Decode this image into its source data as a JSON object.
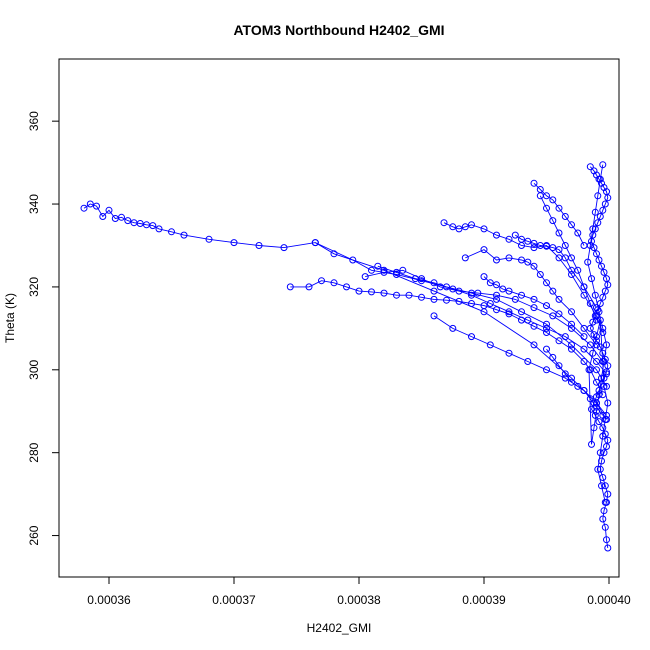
{
  "chart_data": {
    "type": "scatter",
    "title": "ATOM3 Northbound H2402_GMI",
    "xlabel": "H2402_GMI",
    "ylabel": "Theta (K)",
    "xlim": [
      0.000356,
      0.0004008
    ],
    "ylim": [
      250,
      375
    ],
    "x_ticks": [
      "0.00036",
      "0.00037",
      "0.00038",
      "0.00039",
      "0.00040"
    ],
    "x_tick_values": [
      0.00036,
      0.00037,
      0.00038,
      0.00039,
      0.0004
    ],
    "y_ticks": [
      "260",
      "280",
      "300",
      "320",
      "340",
      "360"
    ],
    "y_tick_values": [
      260,
      280,
      300,
      320,
      340,
      360
    ],
    "grid": false,
    "legend": "none",
    "marker": "open-circle",
    "color": "#0000ff",
    "series": [
      {
        "x": [
          0.000358,
          0.0003585,
          0.000359,
          0.0003595,
          0.00036,
          0.0003605,
          0.000361,
          0.0003615,
          0.000362,
          0.0003625,
          0.000363,
          0.0003635,
          0.000364,
          0.000365,
          0.000366,
          0.000368,
          0.00037,
          0.000372,
          0.000374,
          0.0003765,
          0.000378,
          0.000382,
          0.000386,
          0.00039,
          0.000394,
          0.000397,
          0.000399,
          0.0003998
        ],
        "y": [
          339.0,
          340.0,
          339.5,
          337.0,
          338.5,
          336.5,
          336.8,
          336.0,
          335.5,
          335.3,
          335.0,
          334.8,
          334.0,
          333.3,
          332.5,
          331.5,
          330.7,
          330.0,
          329.5,
          330.7,
          328.0,
          324.0,
          319.0,
          314.0,
          306.0,
          298.0,
          292.0,
          288.0
        ]
      },
      {
        "x": [
          0.0003745,
          0.000376,
          0.000377,
          0.000378,
          0.000379,
          0.00038,
          0.000381,
          0.000382,
          0.000383,
          0.000384,
          0.000385,
          0.000386,
          0.000387,
          0.000388,
          0.000389,
          0.00039,
          0.000391,
          0.000392,
          0.000393,
          0.000394,
          0.000395,
          0.000396,
          0.000397,
          0.000398,
          0.0003985,
          0.000399,
          0.0003995
        ],
        "y": [
          320.0,
          320.0,
          321.5,
          321.0,
          320.0,
          319.0,
          318.8,
          318.5,
          318.0,
          318.0,
          317.5,
          317.0,
          316.8,
          316.5,
          316.0,
          315.5,
          314.5,
          313.5,
          312.0,
          310.5,
          309.0,
          307.0,
          305.0,
          302.0,
          300.0,
          297.0,
          294.0
        ]
      },
      {
        "x": [
          0.0003765,
          0.0003795,
          0.000381,
          0.000383,
          0.000385,
          0.000387,
          0.000389,
          0.000391,
          0.000393,
          0.000395,
          0.000397,
          0.000399,
          0.0003998
        ],
        "y": [
          330.7,
          326.5,
          324.0,
          323.0,
          321.5,
          320.0,
          318.5,
          317.0,
          314.0,
          311.0,
          306.0,
          300.0,
          296.0
        ]
      },
      {
        "x": [
          0.0003805,
          0.000382,
          0.0003835,
          0.000385,
          0.0003865,
          0.000388,
          0.0003895,
          0.000391,
          0.0003925,
          0.000394,
          0.0003955,
          0.000397,
          0.0003985,
          0.0003995
        ],
        "y": [
          322.5,
          323.5,
          324.0,
          322.0,
          320.0,
          319.0,
          318.5,
          318.0,
          317.0,
          315.0,
          313.0,
          310.0,
          306.0,
          302.0
        ]
      },
      {
        "x": [
          0.0003815,
          0.000383,
          0.0003845,
          0.000386,
          0.0003875,
          0.000389,
          0.0003905,
          0.000392,
          0.0003935,
          0.000395,
          0.0003965,
          0.000398,
          0.000399,
          0.0003998
        ],
        "y": [
          325.0,
          323.5,
          322.0,
          321.0,
          319.5,
          318.0,
          316.0,
          314.0,
          312.0,
          310.0,
          308.0,
          305.0,
          302.0,
          299.0
        ]
      },
      {
        "x": [
          0.000386,
          0.0003875,
          0.000389,
          0.0003905,
          0.000392,
          0.0003935,
          0.000395,
          0.0003965,
          0.000398,
          0.000399,
          0.0003998
        ],
        "y": [
          313.0,
          310.0,
          308.0,
          306.0,
          304.0,
          302.0,
          300.0,
          298.0,
          295.0,
          292.0,
          289.0
        ]
      },
      {
        "x": [
          0.0003868,
          0.0003875,
          0.000388,
          0.0003885,
          0.000389,
          0.00039,
          0.000391,
          0.000392,
          0.000393,
          0.000394,
          0.000395,
          0.000396,
          0.000397,
          0.000398,
          0.000399,
          0.0003995
        ],
        "y": [
          335.5,
          334.5,
          334.0,
          334.5,
          335.0,
          334.0,
          332.5,
          331.5,
          330.0,
          329.5,
          330.0,
          327.0,
          323.0,
          318.0,
          313.0,
          309.0
        ]
      },
      {
        "x": [
          0.0003885,
          0.00039,
          0.000391,
          0.000392,
          0.000393,
          0.0003935,
          0.000394,
          0.0003945,
          0.000395,
          0.0003955,
          0.000396,
          0.000397,
          0.000398,
          0.000399
        ],
        "y": [
          327.0,
          329.0,
          326.5,
          327.0,
          326.5,
          326.0,
          325.0,
          323.0,
          321.0,
          319.0,
          317.0,
          314.0,
          310.0,
          306.0
        ]
      },
      {
        "x": [
          0.0003925,
          0.000393,
          0.0003935,
          0.000394,
          0.0003945,
          0.000395,
          0.0003955,
          0.000396,
          0.0003965,
          0.000397,
          0.000398,
          0.000399
        ],
        "y": [
          332.5,
          331.5,
          331.0,
          330.5,
          330.0,
          329.8,
          329.5,
          329.0,
          327.0,
          324.0,
          320.0,
          315.0
        ]
      },
      {
        "x": [
          0.000394,
          0.0003945,
          0.000395,
          0.0003955,
          0.000396,
          0.0003965,
          0.000397,
          0.0003975,
          0.000398
        ],
        "y": [
          345.0,
          343.5,
          342.0,
          341.0,
          339.0,
          337.0,
          335.0,
          333.0,
          330.0
        ]
      },
      {
        "x": [
          0.0003945,
          0.000395,
          0.0003955,
          0.000396,
          0.0003965,
          0.000397,
          0.0003975,
          0.000398,
          0.0003985,
          0.000399
        ],
        "y": [
          342.0,
          339.0,
          336.0,
          333.0,
          330.0,
          327.0,
          324.0,
          320.0,
          316.0,
          312.0
        ]
      },
      {
        "x": [
          0.00039,
          0.0003905,
          0.000391,
          0.0003915,
          0.000392,
          0.000393,
          0.000394,
          0.000395,
          0.000396,
          0.000397,
          0.000398
        ],
        "y": [
          322.5,
          321.0,
          320.5,
          319.5,
          319.0,
          318.0,
          317.0,
          315.5,
          313.5,
          311.0,
          308.0
        ]
      },
      {
        "x": [
          0.000395,
          0.0003955,
          0.000396,
          0.0003965,
          0.000397,
          0.0003975,
          0.000398,
          0.0003985,
          0.000399,
          0.0003995
        ],
        "y": [
          305.0,
          303.0,
          301.0,
          299.0,
          297.0,
          296.0,
          295.0,
          293.0,
          291.0,
          289.0
        ]
      },
      {
        "x": [
          0.0003985,
          0.0003988,
          0.000399,
          0.0003992,
          0.0003994,
          0.0003996,
          0.0003998,
          0.0003999,
          0.0003997,
          0.0003995,
          0.0003993,
          0.0003991,
          0.0003989,
          0.0003987,
          0.0003986,
          0.0003988,
          0.000399,
          0.0003992,
          0.0003994,
          0.0003996,
          0.0003998,
          0.0003999,
          0.0003997,
          0.0003995,
          0.0003993,
          0.0003991,
          0.0003989,
          0.0003987,
          0.0003985,
          0.0003988,
          0.000399,
          0.0003993,
          0.0003995,
          0.0003997,
          0.0003999,
          0.0003998,
          0.0003996,
          0.0003994,
          0.0003992,
          0.000399,
          0.0003988,
          0.0003986,
          0.0003989,
          0.0003992,
          0.0003995,
          0.0003997,
          0.0003999,
          0.0003998,
          0.0003996,
          0.0003994,
          0.0003993,
          0.0003995,
          0.0003997,
          0.0003999,
          0.0003998,
          0.0003996,
          0.0003995,
          0.0003997,
          0.0003998,
          0.0003999
        ],
        "y": [
          349.0,
          348.0,
          347.0,
          346.0,
          345.0,
          344.0,
          343.0,
          341.5,
          340.0,
          338.5,
          337.0,
          335.5,
          334.0,
          332.5,
          331.0,
          329.5,
          328.0,
          326.5,
          325.0,
          323.5,
          322.0,
          320.5,
          319.0,
          317.5,
          316.0,
          314.5,
          313.0,
          311.5,
          310.0,
          308.5,
          307.0,
          305.5,
          304.0,
          302.5,
          301.0,
          299.5,
          298.0,
          296.5,
          295.0,
          293.5,
          292.0,
          290.5,
          289.0,
          287.5,
          286.0,
          284.5,
          283.0,
          281.5,
          280.0,
          278.0,
          276.0,
          274.0,
          272.0,
          270.0,
          268.0,
          266.0,
          264.0,
          262.0,
          259.0,
          257.0
        ]
      },
      {
        "x": [
          0.0003995,
          0.0003993,
          0.0003991,
          0.0003989,
          0.0003987,
          0.0003985,
          0.0003983,
          0.0003986,
          0.0003989,
          0.0003992,
          0.0003995,
          0.0003998,
          0.0003996,
          0.0003994,
          0.0003992,
          0.000399,
          0.0003988,
          0.0003986,
          0.0003984,
          0.0003987,
          0.000399,
          0.0003993,
          0.0003996,
          0.0003999,
          0.0003997,
          0.0003995,
          0.0003993,
          0.0003991,
          0.0003994,
          0.0003997
        ],
        "y": [
          349.5,
          346.0,
          342.0,
          338.0,
          334.0,
          330.0,
          326.0,
          322.0,
          318.0,
          314.0,
          310.0,
          306.0,
          302.0,
          298.0,
          294.0,
          290.0,
          286.0,
          282.0,
          300.0,
          304.0,
          308.0,
          312.0,
          296.0,
          292.0,
          288.0,
          284.0,
          280.0,
          276.0,
          272.0,
          268.0
        ]
      }
    ]
  }
}
